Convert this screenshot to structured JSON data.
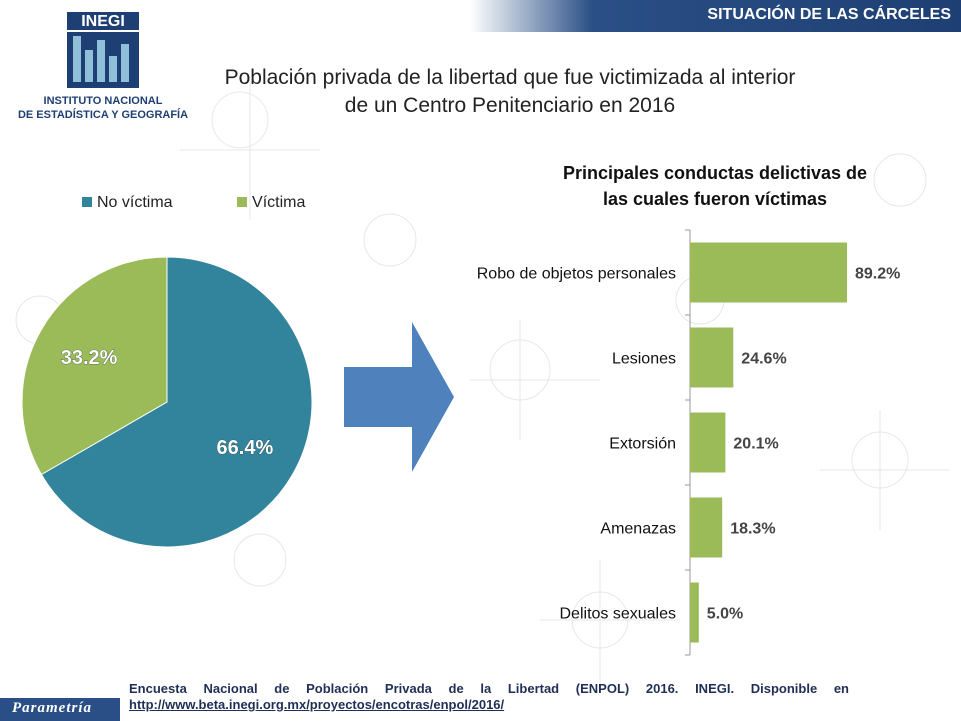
{
  "header": {
    "section_label": "SITUACIÓN DE LAS CÁRCELES"
  },
  "logo": {
    "acronym": "INEGI",
    "line1": "INSTITUTO NACIONAL",
    "line2": "DE ESTADÍSTICA Y GEOGRAFÍA"
  },
  "title": {
    "line1": "Población privada de la libertad que fue victimizada al interior",
    "line2": "de un Centro Penitenciario en 2016"
  },
  "chart_data": [
    {
      "type": "pie",
      "title": "",
      "legend_position": "top",
      "series": [
        {
          "name": "No víctima",
          "value": 66.4,
          "label": "66.4%",
          "color": "#31849b"
        },
        {
          "name": "Víctima",
          "value": 33.2,
          "label": "33.2%",
          "color": "#9bbb59"
        }
      ]
    },
    {
      "type": "bar",
      "orientation": "horizontal",
      "title_line1": "Principales conductas delictivas de",
      "title_line2": "las cuales fueron víctimas",
      "categories": [
        "Robo de objetos personales",
        "Lesiones",
        "Extorsión",
        "Amenazas",
        "Delitos sexuales"
      ],
      "values": [
        89.2,
        24.6,
        20.1,
        18.3,
        5.0
      ],
      "labels": [
        "89.2%",
        "24.6%",
        "20.1%",
        "18.3%",
        "5.0%"
      ],
      "color": "#9bbb59",
      "xlim": [
        0,
        100
      ],
      "grid": false
    }
  ],
  "footer": {
    "source": "Encuesta Nacional de Población Privada de la Libertad (ENPOL) 2016. INEGI. Disponible en",
    "link": "http://www.beta.inegi.org.mx/proyectos/encotras/enpol/2016/"
  },
  "brand": {
    "name": "Parametría"
  },
  "colors": {
    "header_blue": "#1e3f73",
    "teal": "#31849b",
    "green": "#9bbb59",
    "arrow_blue": "#4f81bd"
  },
  "icons": {
    "arrow": "right-arrow-icon"
  }
}
